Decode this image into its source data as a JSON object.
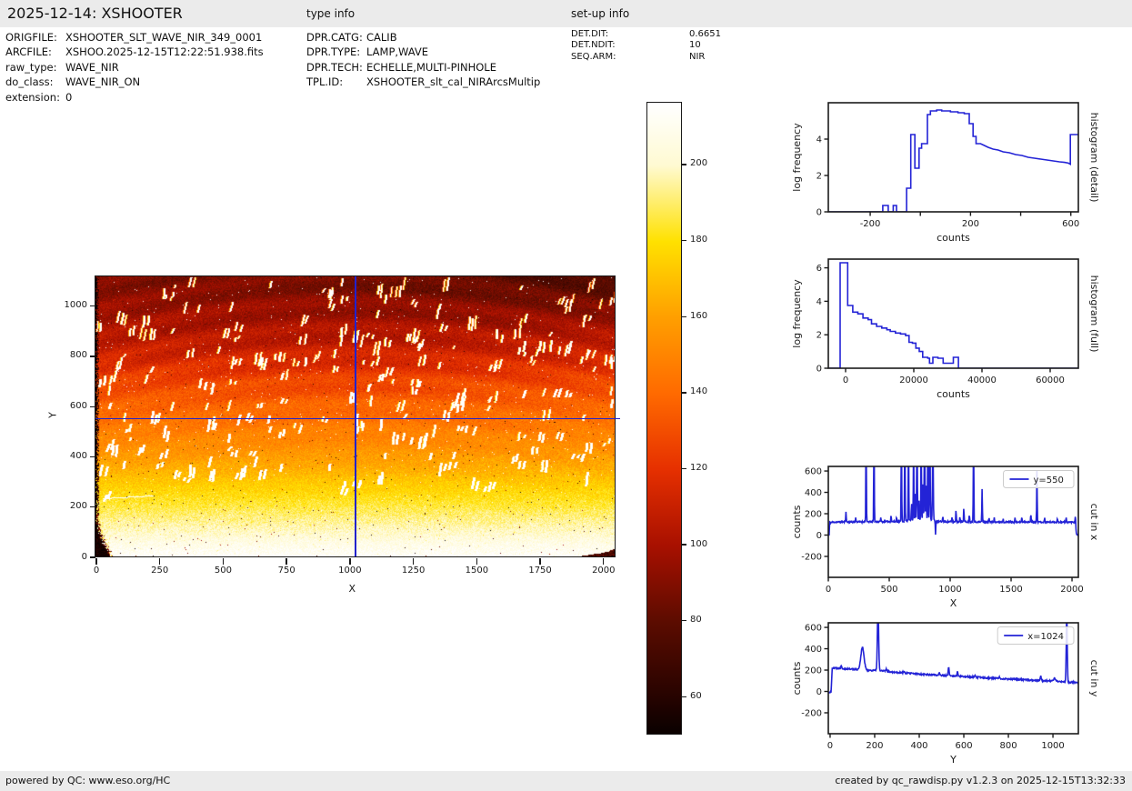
{
  "header": {
    "title": "2025-12-14: XSHOOTER",
    "type_info_label": "type info",
    "setup_info_label": "set-up info"
  },
  "file_info": [
    {
      "label": "ORIGFILE:",
      "value": "XSHOOTER_SLT_WAVE_NIR_349_0001"
    },
    {
      "label": "ARCFILE:",
      "value": "XSHOO.2025-12-15T12:22:51.938.fits"
    },
    {
      "label": "raw_type:",
      "value": "WAVE_NIR"
    },
    {
      "label": "do_class:",
      "value": "WAVE_NIR_ON"
    },
    {
      "label": "extension:",
      "value": "0"
    }
  ],
  "type_info": [
    {
      "label": "DPR.CATG:",
      "value": "CALIB"
    },
    {
      "label": "DPR.TYPE:",
      "value": "LAMP,WAVE"
    },
    {
      "label": "DPR.TECH:",
      "value": "ECHELLE,MULTI-PINHOLE"
    },
    {
      "label": "TPL.ID:",
      "value": "XSHOOTER_slt_cal_NIRArcsMultip"
    }
  ],
  "setup_info": [
    {
      "label": "DET.DIT:",
      "value": "0.6651"
    },
    {
      "label": "DET.NDIT:",
      "value": "10"
    },
    {
      "label": "SEQ.ARM:",
      "value": "NIR"
    }
  ],
  "footer": {
    "left": "powered by QC: www.eso.org/HC",
    "right": "created by qc_rawdisp.py v1.2.3 on 2025-12-15T13:32:33"
  },
  "colors": {
    "line": "#2323d6",
    "spine": "#1a1a1a",
    "bar_bg": "#ebebeb",
    "crosshair": "#2222cc"
  },
  "colorbar": {
    "ticks": [
      200,
      180,
      160,
      140,
      120,
      100,
      80,
      60
    ],
    "vmin": 50.5,
    "vmax": 216.5,
    "stops": [
      {
        "v": 50,
        "c": "#0a0100"
      },
      {
        "v": 60,
        "c": "#260300"
      },
      {
        "v": 80,
        "c": "#5c0c00"
      },
      {
        "v": 100,
        "c": "#a81000"
      },
      {
        "v": 120,
        "c": "#e63000"
      },
      {
        "v": 140,
        "c": "#ff6a00"
      },
      {
        "v": 160,
        "c": "#ff9f00"
      },
      {
        "v": 180,
        "c": "#ffe100"
      },
      {
        "v": 200,
        "c": "#fffad2"
      },
      {
        "v": 216,
        "c": "#ffffff"
      }
    ]
  },
  "chart_data": [
    {
      "id": "detector_image",
      "type": "heatmap",
      "xlabel": "X",
      "ylabel": "Y",
      "xlim": [
        0,
        2048
      ],
      "ylim": [
        0,
        1114
      ],
      "xticks": [
        0,
        250,
        500,
        750,
        1000,
        1250,
        1500,
        1750,
        2000
      ],
      "yticks": [
        0,
        200,
        400,
        600,
        800,
        1000
      ],
      "crosshair": {
        "x": 1024,
        "y": 550
      },
      "colormap": "hot",
      "vmin": 50,
      "vmax": 216,
      "background_profile": [
        [
          0,
          215
        ],
        [
          100,
          200
        ],
        [
          200,
          186
        ],
        [
          300,
          172
        ],
        [
          400,
          158
        ],
        [
          500,
          148
        ],
        [
          550,
          143
        ],
        [
          600,
          138
        ],
        [
          700,
          127
        ],
        [
          800,
          113
        ],
        [
          900,
          103
        ],
        [
          1000,
          96
        ],
        [
          1120,
          88
        ]
      ],
      "description": "NIR arc-lamp multi-pinhole echelle raw frame: bright (white/yellow) at bottom fading to dark red at top, short tilted bright emission-line dashes along curved orders, dark corner blobs bottom-left and bottom-right, speckled left edge, blue crosshair at x=1024 / y=550"
    },
    {
      "id": "hist_detail",
      "type": "line",
      "right_label": "histogram (detail)",
      "xlabel": "counts",
      "ylabel": "log frequency",
      "xlim": [
        -367,
        630
      ],
      "ylim": [
        0,
        6.0
      ],
      "xticks": [
        {
          "v": -200,
          "label": "-200"
        },
        {
          "v": 0,
          "label": ""
        },
        {
          "v": 200,
          "label": "200"
        },
        {
          "v": 400,
          "label": ""
        },
        {
          "v": 600,
          "label": "600"
        }
      ],
      "yticks": [
        0,
        2,
        4
      ],
      "points": [
        [
          -367,
          0
        ],
        [
          -150,
          0
        ],
        [
          -150,
          0.35
        ],
        [
          -128,
          0.35
        ],
        [
          -128,
          0
        ],
        [
          -108,
          0
        ],
        [
          -108,
          0.35
        ],
        [
          -95,
          0.35
        ],
        [
          -95,
          0
        ],
        [
          -55,
          0
        ],
        [
          -55,
          1.3
        ],
        [
          -38,
          1.3
        ],
        [
          -38,
          4.25
        ],
        [
          -22,
          4.25
        ],
        [
          -22,
          2.4
        ],
        [
          -5,
          2.4
        ],
        [
          -5,
          3.5
        ],
        [
          5,
          3.5
        ],
        [
          5,
          3.75
        ],
        [
          28,
          3.75
        ],
        [
          28,
          5.35
        ],
        [
          40,
          5.35
        ],
        [
          40,
          5.55
        ],
        [
          65,
          5.55
        ],
        [
          65,
          5.6
        ],
        [
          85,
          5.6
        ],
        [
          85,
          5.55
        ],
        [
          120,
          5.55
        ],
        [
          120,
          5.5
        ],
        [
          150,
          5.5
        ],
        [
          150,
          5.45
        ],
        [
          175,
          5.45
        ],
        [
          175,
          5.4
        ],
        [
          195,
          5.4
        ],
        [
          195,
          4.85
        ],
        [
          210,
          4.85
        ],
        [
          210,
          4.15
        ],
        [
          222,
          4.15
        ],
        [
          222,
          3.75
        ],
        [
          240,
          3.75
        ],
        [
          255,
          3.65
        ],
        [
          270,
          3.55
        ],
        [
          290,
          3.45
        ],
        [
          310,
          3.4
        ],
        [
          330,
          3.3
        ],
        [
          355,
          3.25
        ],
        [
          380,
          3.15
        ],
        [
          405,
          3.1
        ],
        [
          430,
          3.0
        ],
        [
          455,
          2.95
        ],
        [
          480,
          2.9
        ],
        [
          505,
          2.85
        ],
        [
          530,
          2.8
        ],
        [
          555,
          2.75
        ],
        [
          575,
          2.72
        ],
        [
          590,
          2.68
        ],
        [
          598,
          2.62
        ],
        [
          598,
          4.25
        ],
        [
          630,
          4.25
        ]
      ]
    },
    {
      "id": "hist_full",
      "type": "line",
      "right_label": "histogram (full)",
      "xlabel": "counts",
      "ylabel": "log frequency",
      "xlim": [
        -5067,
        68267
      ],
      "ylim": [
        0,
        6.52
      ],
      "xticks": [
        {
          "v": 0,
          "label": "0"
        },
        {
          "v": 20000,
          "label": "20000"
        },
        {
          "v": 40000,
          "label": "40000"
        },
        {
          "v": 60000,
          "label": "60000"
        }
      ],
      "yticks": [
        0,
        2,
        4,
        6
      ],
      "points": [
        [
          -5067,
          0
        ],
        [
          -1600,
          0
        ],
        [
          -1600,
          6.3
        ],
        [
          600,
          6.3
        ],
        [
          600,
          3.75
        ],
        [
          2100,
          3.75
        ],
        [
          2100,
          3.35
        ],
        [
          3600,
          3.35
        ],
        [
          3600,
          3.25
        ],
        [
          5100,
          3.25
        ],
        [
          5100,
          3.0
        ],
        [
          6600,
          3.0
        ],
        [
          6600,
          2.9
        ],
        [
          7600,
          2.9
        ],
        [
          7600,
          2.65
        ],
        [
          9100,
          2.65
        ],
        [
          9100,
          2.5
        ],
        [
          10600,
          2.5
        ],
        [
          10600,
          2.4
        ],
        [
          12100,
          2.4
        ],
        [
          12100,
          2.3
        ],
        [
          13100,
          2.3
        ],
        [
          13100,
          2.2
        ],
        [
          14600,
          2.2
        ],
        [
          14600,
          2.1
        ],
        [
          16100,
          2.1
        ],
        [
          16100,
          2.05
        ],
        [
          17600,
          2.05
        ],
        [
          17600,
          1.95
        ],
        [
          18600,
          1.95
        ],
        [
          18600,
          1.55
        ],
        [
          19600,
          1.55
        ],
        [
          19600,
          1.5
        ],
        [
          20600,
          1.5
        ],
        [
          20600,
          1.2
        ],
        [
          21600,
          1.2
        ],
        [
          21600,
          1.0
        ],
        [
          22600,
          1.0
        ],
        [
          22600,
          0.65
        ],
        [
          24100,
          0.65
        ],
        [
          24100,
          0.6
        ],
        [
          24600,
          0.6
        ],
        [
          24600,
          0.3
        ],
        [
          25600,
          0.3
        ],
        [
          25600,
          0.65
        ],
        [
          27100,
          0.65
        ],
        [
          27100,
          0.6
        ],
        [
          28600,
          0.6
        ],
        [
          28600,
          0.3
        ],
        [
          31600,
          0.3
        ],
        [
          31600,
          0.65
        ],
        [
          33100,
          0.65
        ],
        [
          33100,
          0
        ],
        [
          68267,
          0
        ]
      ]
    },
    {
      "id": "cut_x",
      "type": "line",
      "right_label": "cut in x",
      "xlabel": "X",
      "ylabel": "counts",
      "legend": "y=550",
      "xlim": [
        0,
        2052
      ],
      "ylim": [
        -396,
        643
      ],
      "xticks": [
        {
          "v": 0,
          "label": "0"
        },
        {
          "v": 500,
          "label": "500"
        },
        {
          "v": 1000,
          "label": "1000"
        },
        {
          "v": 1500,
          "label": "1500"
        },
        {
          "v": 2000,
          "label": "2000"
        }
      ],
      "yticks": [
        -200,
        0,
        200,
        400,
        600
      ],
      "seed": 11,
      "noise": 7,
      "baseline": [
        [
          0,
          0
        ],
        [
          7,
          0
        ],
        [
          11,
          118
        ],
        [
          60,
          122
        ],
        [
          300,
          124
        ],
        [
          600,
          127
        ],
        [
          690,
          140
        ],
        [
          780,
          150
        ],
        [
          860,
          142
        ],
        [
          900,
          126
        ],
        [
          1100,
          124
        ],
        [
          1400,
          122
        ],
        [
          1700,
          122
        ],
        [
          2005,
          121
        ],
        [
          2024,
          121
        ],
        [
          2032,
          60
        ],
        [
          2038,
          0
        ],
        [
          2052,
          0
        ]
      ],
      "spikes": [
        [
          145,
          105,
          3
        ],
        [
          225,
          45,
          3
        ],
        [
          310,
          900,
          3
        ],
        [
          375,
          900,
          3
        ],
        [
          430,
          40,
          3
        ],
        [
          515,
          62,
          3
        ],
        [
          560,
          40,
          3
        ],
        [
          600,
          900,
          3
        ],
        [
          628,
          900,
          3
        ],
        [
          658,
          900,
          3
        ],
        [
          683,
          170,
          3
        ],
        [
          700,
          900,
          3
        ],
        [
          714,
          280,
          3
        ],
        [
          728,
          900,
          4
        ],
        [
          745,
          180,
          3
        ],
        [
          762,
          900,
          3
        ],
        [
          776,
          380,
          3
        ],
        [
          790,
          900,
          4
        ],
        [
          803,
          320,
          3
        ],
        [
          817,
          900,
          3
        ],
        [
          833,
          900,
          4
        ],
        [
          858,
          900,
          4
        ],
        [
          880,
          -125,
          3
        ],
        [
          940,
          55,
          3
        ],
        [
          1015,
          40,
          3
        ],
        [
          1048,
          115,
          3
        ],
        [
          1080,
          55,
          3
        ],
        [
          1112,
          135,
          3
        ],
        [
          1157,
          70,
          3
        ],
        [
          1192,
          900,
          3
        ],
        [
          1262,
          305,
          3
        ],
        [
          1320,
          40,
          3
        ],
        [
          1362,
          50,
          3
        ],
        [
          1435,
          35,
          3
        ],
        [
          1532,
          38,
          3
        ],
        [
          1588,
          45,
          3
        ],
        [
          1662,
          75,
          3
        ],
        [
          1712,
          495,
          3
        ],
        [
          1775,
          38,
          3
        ],
        [
          1880,
          35,
          3
        ],
        [
          1952,
          42,
          3
        ],
        [
          2028,
          95,
          3
        ]
      ]
    },
    {
      "id": "cut_y",
      "type": "line",
      "right_label": "cut in y",
      "xlabel": "Y",
      "ylabel": "counts",
      "legend": "x=1024",
      "xlim": [
        -8,
        1114
      ],
      "ylim": [
        -396,
        643
      ],
      "xticks": [
        {
          "v": 0,
          "label": "0"
        },
        {
          "v": 200,
          "label": "200"
        },
        {
          "v": 400,
          "label": "400"
        },
        {
          "v": 600,
          "label": "600"
        },
        {
          "v": 800,
          "label": "800"
        },
        {
          "v": 1000,
          "label": "1000"
        }
      ],
      "yticks": [
        -200,
        0,
        200,
        400,
        600
      ],
      "seed": 22,
      "noise": 7,
      "baseline": [
        [
          -8,
          -8
        ],
        [
          5,
          -8
        ],
        [
          9,
          222
        ],
        [
          60,
          214
        ],
        [
          120,
          206
        ],
        [
          165,
          199
        ],
        [
          230,
          194
        ],
        [
          300,
          179
        ],
        [
          400,
          163
        ],
        [
          500,
          151
        ],
        [
          600,
          139
        ],
        [
          700,
          128
        ],
        [
          800,
          117
        ],
        [
          900,
          106
        ],
        [
          1000,
          97
        ],
        [
          1050,
          90
        ],
        [
          1114,
          81
        ]
      ],
      "spikes": [
        [
          50,
          32,
          3
        ],
        [
          145,
          210,
          10
        ],
        [
          215,
          600,
          4
        ],
        [
          252,
          22,
          3
        ],
        [
          330,
          12,
          3
        ],
        [
          490,
          28,
          3
        ],
        [
          532,
          75,
          3
        ],
        [
          572,
          42,
          3
        ],
        [
          650,
          15,
          3
        ],
        [
          760,
          12,
          3
        ],
        [
          945,
          40,
          3
        ],
        [
          1008,
          28,
          6
        ],
        [
          1062,
          680,
          3
        ]
      ]
    }
  ]
}
